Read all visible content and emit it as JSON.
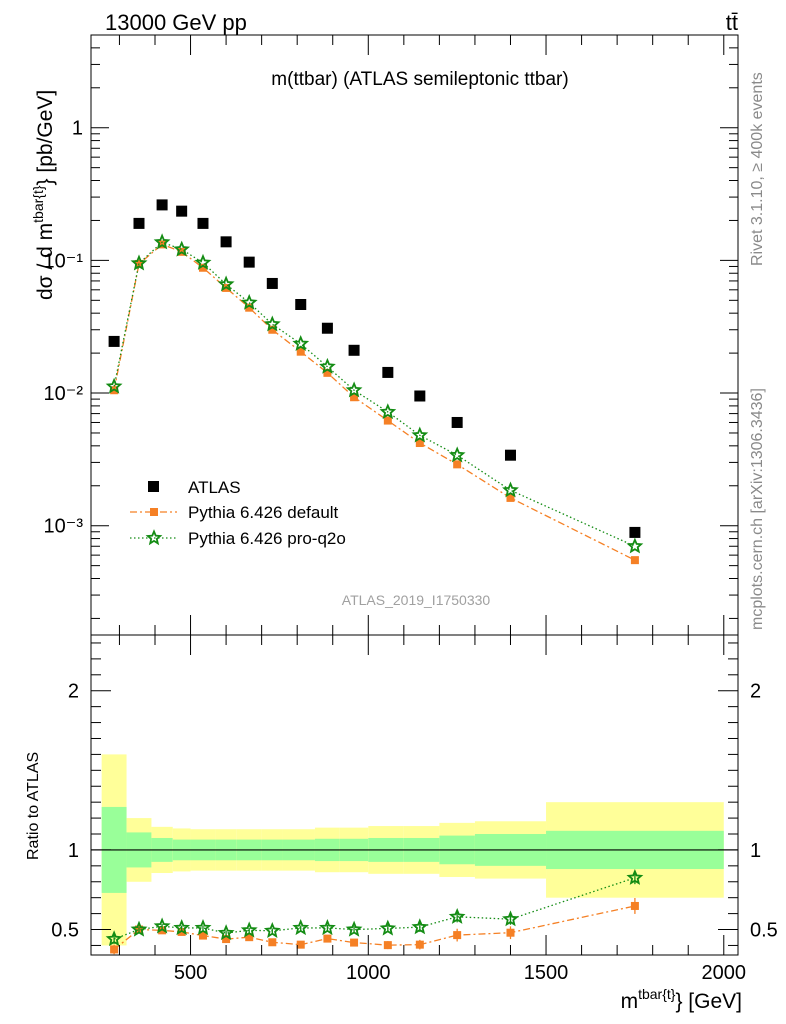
{
  "header": {
    "energy_label": "13000 GeV pp",
    "process_label": "tt̄"
  },
  "side_labels": {
    "rivet": "Rivet 3.1.10, ≥ 400k events",
    "mcplots": "mcplots.cern.ch [arXiv:1306.3436]"
  },
  "chart_data": [
    {
      "type": "scatter",
      "title": "m(ttbar) (ATLAS semileptonic ttbar)",
      "analysis_id": "ATLAS_2019_I1750330",
      "xlabel": "m^{tbar{t}} [GeV]",
      "ylabel": "dσ / d m^{tbar{t}} [pb/GeV]",
      "yscale": "log",
      "ylim": [
        0.00015,
        5
      ],
      "xlim": [
        220,
        2040
      ],
      "y_tick_labels": [
        "10⁻³",
        "10⁻²",
        "10⁻¹",
        "1"
      ],
      "legend_position": "bottom-left",
      "x": [
        285,
        355,
        420,
        475,
        535,
        600,
        665,
        730,
        810,
        885,
        960,
        1055,
        1145,
        1250,
        1400,
        1750
      ],
      "series": [
        {
          "name": "ATLAS",
          "color": "#000000",
          "marker": "square",
          "values": [
            0.0245,
            0.19,
            0.262,
            0.235,
            0.19,
            0.138,
            0.097,
            0.067,
            0.0465,
            0.0308,
            0.021,
            0.0143,
            0.0095,
            0.006,
            0.0034,
            0.00089
          ]
        },
        {
          "name": "Pythia 6.426 default",
          "color": "#f58025",
          "marker": "square",
          "line": "dashdot",
          "values": [
            0.0105,
            0.094,
            0.132,
            0.116,
            0.088,
            0.062,
            0.044,
            0.03,
            0.0205,
            0.0142,
            0.0093,
            0.0062,
            0.0042,
            0.0029,
            0.00162,
            0.00055
          ]
        },
        {
          "name": "Pythia 6.426 pro-q2o",
          "color": "#148c14",
          "marker": "star",
          "line": "dotted",
          "values": [
            0.0112,
            0.095,
            0.137,
            0.121,
            0.096,
            0.066,
            0.048,
            0.033,
            0.0235,
            0.0158,
            0.0105,
            0.0072,
            0.0048,
            0.0034,
            0.00185,
            0.0007
          ]
        }
      ]
    },
    {
      "type": "scatter",
      "ylabel": "Ratio to ATLAS",
      "ylim": [
        0.34,
        2.35
      ],
      "xlim": [
        220,
        2040
      ],
      "x_ticks": [
        500,
        1000,
        1500,
        2000
      ],
      "y_ticks": [
        0.5,
        1,
        2
      ],
      "x": [
        285,
        355,
        420,
        475,
        535,
        600,
        665,
        730,
        810,
        885,
        960,
        1055,
        1145,
        1250,
        1400,
        1750
      ],
      "bins": [
        250,
        320,
        390,
        450,
        500,
        570,
        630,
        700,
        760,
        850,
        920,
        1000,
        1100,
        1200,
        1300,
        1500,
        2000
      ],
      "band_stat_half_width": [
        0.27,
        0.11,
        0.075,
        0.065,
        0.065,
        0.065,
        0.065,
        0.065,
        0.065,
        0.07,
        0.07,
        0.075,
        0.075,
        0.09,
        0.1,
        0.12
      ],
      "band_total_half_width": [
        0.6,
        0.2,
        0.145,
        0.135,
        0.13,
        0.13,
        0.13,
        0.13,
        0.13,
        0.14,
        0.14,
        0.15,
        0.15,
        0.17,
        0.18,
        0.3
      ],
      "series": [
        {
          "name": "Pythia 6.426 default",
          "color": "#f58025",
          "values": [
            0.375,
            0.5,
            0.495,
            0.485,
            0.462,
            0.44,
            0.452,
            0.42,
            0.405,
            0.443,
            0.418,
            0.402,
            0.405,
            0.465,
            0.48,
            0.648
          ],
          "errors": [
            0.03,
            0.015,
            0.015,
            0.015,
            0.015,
            0.015,
            0.015,
            0.015,
            0.015,
            0.02,
            0.02,
            0.025,
            0.03,
            0.04,
            0.04,
            0.05
          ]
        },
        {
          "name": "Pythia 6.426 pro-q2o",
          "color": "#148c14",
          "values": [
            0.44,
            0.5,
            0.52,
            0.51,
            0.51,
            0.478,
            0.495,
            0.492,
            0.51,
            0.51,
            0.5,
            0.507,
            0.515,
            0.58,
            0.565,
            0.825
          ],
          "errors": [
            0.03,
            0.015,
            0.015,
            0.015,
            0.015,
            0.015,
            0.015,
            0.015,
            0.015,
            0.02,
            0.02,
            0.025,
            0.03,
            0.035,
            0.035,
            0.04
          ]
        }
      ]
    }
  ]
}
